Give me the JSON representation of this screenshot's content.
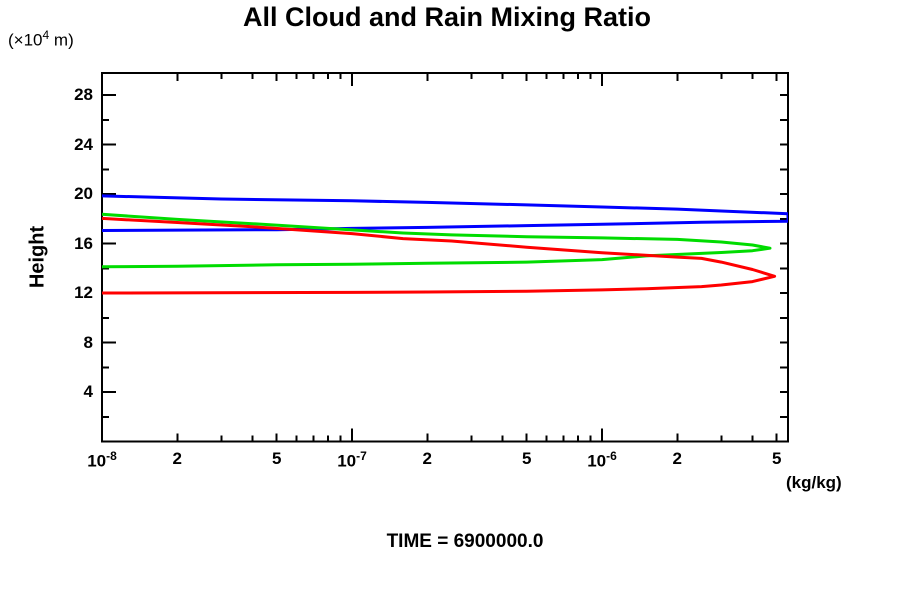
{
  "title": "All Cloud and Rain Mixing Ratio",
  "y_unit": {
    "prefix": "(×10",
    "sup": "4",
    "suffix": " m)"
  },
  "y_axis_label": "Height",
  "x_axis_unit": "(kg/kg)",
  "caption": "TIME = 6900000.0",
  "colors": {
    "axis": "#000000",
    "background": "#ffffff"
  },
  "chart_data": {
    "type": "line",
    "title": "All Cloud and Rain Mixing Ratio",
    "xlabel": "(kg/kg)",
    "ylabel": "Height (x10^4 m)",
    "x_scale": "log",
    "grid": false,
    "legend": "none",
    "xlim": [
      1e-08,
      5.546e-06
    ],
    "ylim": [
      0,
      29.78
    ],
    "y_major_ticks": [
      4,
      8,
      12,
      16,
      20,
      24,
      28
    ],
    "y_minor_ticks": [
      2,
      6,
      10,
      14,
      18,
      22,
      26
    ],
    "x_decade_ticks": [
      1e-08,
      1e-07,
      1e-06
    ],
    "x_mid_ticks": [
      2e-08,
      5e-08,
      2e-07,
      5e-07,
      2e-06,
      5e-06
    ],
    "x_minor_ticks": [
      3e-08,
      4e-08,
      6e-08,
      7e-08,
      8e-08,
      9e-08,
      3e-07,
      4e-07,
      6e-07,
      7e-07,
      8e-07,
      9e-07,
      3e-06,
      4e-06
    ],
    "x_tick_labels": [
      {
        "v": 1e-08,
        "text": "10",
        "sup": "-8"
      },
      {
        "v": 2e-08,
        "text": "2"
      },
      {
        "v": 5e-08,
        "text": "5"
      },
      {
        "v": 1e-07,
        "text": "10",
        "sup": "-7"
      },
      {
        "v": 2e-07,
        "text": "2"
      },
      {
        "v": 5e-07,
        "text": "5"
      },
      {
        "v": 1e-06,
        "text": "10",
        "sup": "-6"
      },
      {
        "v": 2e-06,
        "text": "2"
      },
      {
        "v": 5e-06,
        "text": "5"
      }
    ],
    "series": [
      {
        "name": "blue-profile",
        "color": "#0000ff",
        "points": [
          [
            1e-08,
            19.85
          ],
          [
            3e-08,
            19.6
          ],
          [
            1e-07,
            19.45
          ],
          [
            2e-07,
            19.32
          ],
          [
            5e-07,
            19.12
          ],
          [
            1e-06,
            18.95
          ],
          [
            2e-06,
            18.78
          ],
          [
            3e-06,
            18.63
          ],
          [
            4.5e-06,
            18.48
          ],
          [
            5.546e-06,
            18.4
          ],
          [
            5.546e-06,
            17.8
          ],
          [
            4e-06,
            17.77
          ],
          [
            2.5e-06,
            17.72
          ],
          [
            1e-06,
            17.55
          ],
          [
            5e-07,
            17.45
          ],
          [
            2e-07,
            17.3
          ],
          [
            1e-07,
            17.22
          ],
          [
            5e-08,
            17.12
          ],
          [
            1e-08,
            17.05
          ]
        ]
      },
      {
        "name": "green-profile",
        "color": "#00dc00",
        "points": [
          [
            1e-08,
            18.36
          ],
          [
            2e-08,
            17.95
          ],
          [
            4e-08,
            17.6
          ],
          [
            1e-07,
            17.1
          ],
          [
            1.6e-07,
            16.85
          ],
          [
            2.5e-07,
            16.7
          ],
          [
            5e-07,
            16.55
          ],
          [
            1e-06,
            16.45
          ],
          [
            2e-06,
            16.33
          ],
          [
            3e-06,
            16.12
          ],
          [
            4e-06,
            15.88
          ],
          [
            4.7e-06,
            15.62
          ],
          [
            4e-06,
            15.42
          ],
          [
            3e-06,
            15.27
          ],
          [
            2.5e-06,
            15.2
          ],
          [
            1.5e-06,
            15.0
          ],
          [
            1e-06,
            14.7
          ],
          [
            5e-07,
            14.5
          ],
          [
            2e-07,
            14.4
          ],
          [
            1e-07,
            14.33
          ],
          [
            5e-08,
            14.28
          ],
          [
            2e-08,
            14.17
          ],
          [
            1e-08,
            14.12
          ]
        ]
      },
      {
        "name": "red-profile",
        "color": "#ff0000",
        "points": [
          [
            1e-08,
            18.03
          ],
          [
            2e-08,
            17.7
          ],
          [
            4e-08,
            17.35
          ],
          [
            1e-07,
            16.8
          ],
          [
            1.6e-07,
            16.4
          ],
          [
            2.5e-07,
            16.2
          ],
          [
            5e-07,
            15.7
          ],
          [
            1e-06,
            15.25
          ],
          [
            2e-06,
            14.9
          ],
          [
            2.5e-06,
            14.8
          ],
          [
            3e-06,
            14.5
          ],
          [
            4e-06,
            13.9
          ],
          [
            4.9e-06,
            13.35
          ],
          [
            4e-06,
            12.92
          ],
          [
            3e-06,
            12.65
          ],
          [
            2.5e-06,
            12.52
          ],
          [
            1.5e-06,
            12.35
          ],
          [
            1e-06,
            12.25
          ],
          [
            5e-07,
            12.15
          ],
          [
            2e-07,
            12.08
          ],
          [
            1e-07,
            12.05
          ],
          [
            1e-08,
            12.0
          ]
        ]
      }
    ]
  }
}
